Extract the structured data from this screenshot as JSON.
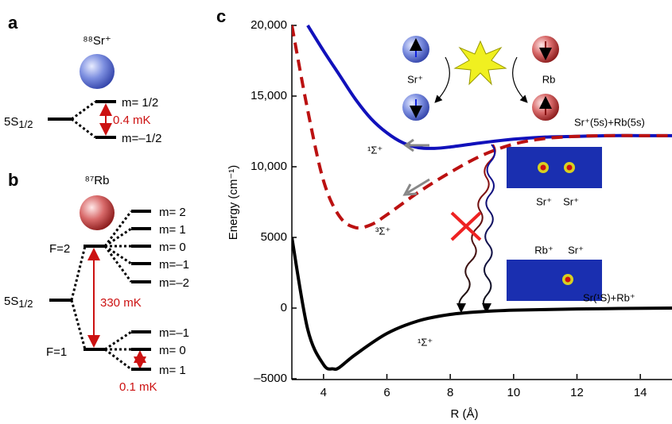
{
  "panel_a": {
    "label": "a",
    "species": "⁸⁸Sr⁺",
    "level": {
      "main": "5S",
      "sub": "1/2"
    },
    "sublevels": [
      "m= 1/2",
      "m=–1/2"
    ],
    "splitting": "0.4 mK"
  },
  "panel_b": {
    "label": "b",
    "species": "⁸⁷Rb",
    "level": {
      "main": "5S",
      "sub": "1/2"
    },
    "F2": {
      "label": "F=2",
      "sublevels": [
        "m= 2",
        "m= 1",
        "m= 0",
        "m=–1",
        "m=–2"
      ]
    },
    "F1": {
      "label": "F=1",
      "sublevels": [
        "m=–1",
        "m= 0",
        "m= 1"
      ]
    },
    "hyperfine_splitting": "330 mK",
    "zeeman_splitting": "0.1 mK"
  },
  "chart_data": {
    "type": "line",
    "panel_label": "c",
    "xlabel": "R (Å)",
    "ylabel": "Energy (cm⁻¹)",
    "xlim": [
      3,
      15
    ],
    "xticks": [
      4,
      6,
      8,
      10,
      12,
      14
    ],
    "ylim": [
      -5000,
      20000
    ],
    "yticks": [
      {
        "value": -5000,
        "label": "–5000"
      },
      0,
      5000,
      {
        "value": 10000,
        "label": "10,000"
      },
      {
        "value": 15000,
        "label": "15,000"
      },
      {
        "value": 20000,
        "label": "20,000"
      }
    ],
    "series": [
      {
        "name": "¹Σ⁺",
        "color": "#1111bb",
        "dashed": false,
        "x": [
          3.5,
          4,
          4.5,
          5,
          5.5,
          6,
          6.5,
          7,
          7.5,
          8,
          9,
          10,
          11,
          12,
          13,
          14,
          15
        ],
        "values": [
          20000,
          18200,
          16500,
          14800,
          13400,
          12400,
          11700,
          11350,
          11300,
          11400,
          11700,
          11950,
          12100,
          12150,
          12200,
          12200,
          12200
        ]
      },
      {
        "name": "³Σ⁺",
        "color": "#bb1111",
        "dashed": true,
        "x": [
          3,
          3.5,
          4,
          4.5,
          5,
          5.5,
          6,
          7,
          8,
          9,
          10,
          11,
          12,
          13,
          14,
          15
        ],
        "values": [
          20000,
          14000,
          9000,
          6500,
          5700,
          5900,
          6600,
          8200,
          9600,
          10800,
          11600,
          12000,
          12150,
          12200,
          12200,
          12200
        ]
      },
      {
        "name": "¹Σ⁺",
        "color": "#000000",
        "dashed": false,
        "x": [
          3,
          3.5,
          4,
          4.3,
          4.5,
          5,
          6,
          7,
          8,
          9,
          10,
          12,
          15
        ],
        "values": [
          5000,
          -1500,
          -4000,
          -4300,
          -4200,
          -3300,
          -1800,
          -900,
          -450,
          -250,
          -150,
          -60,
          0
        ]
      }
    ],
    "annotations": {
      "upper_asymptote": "Sr⁺(5s)+Rb(5s)",
      "lower_asymptote": "Sr(¹S)+Rb⁺",
      "inset_ion": "Sr⁺",
      "inset_atom": "Rb",
      "image_top": [
        "Sr⁺",
        "Sr⁺"
      ],
      "image_bottom": [
        "Rb⁺",
        "Sr⁺"
      ]
    }
  }
}
